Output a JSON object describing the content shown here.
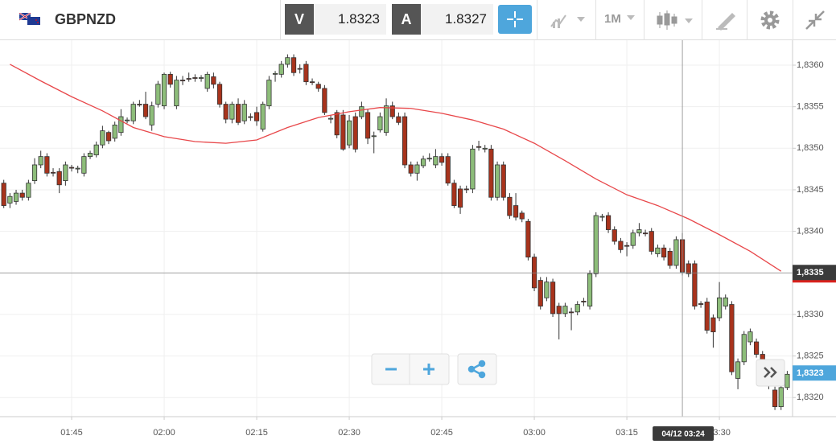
{
  "toolbar": {
    "symbol": "GBPNZD",
    "bid_label": "V",
    "bid": "1.8323",
    "ask_label": "A",
    "ask": "1.8327",
    "timeframe": "1M"
  },
  "chart_data": {
    "type": "candlestick",
    "up_color": "#8dbd7a",
    "down_color": "#a8331c",
    "grid": true,
    "ylim": [
      1.83177,
      1.8363
    ],
    "yticks": [
      {
        "value": 1.832,
        "label": "1,8320"
      },
      {
        "value": 1.8325,
        "label": "1,8325"
      },
      {
        "value": 1.833,
        "label": "1,8330"
      },
      {
        "value": 1.8335,
        "label": "1,8335"
      },
      {
        "value": 1.834,
        "label": "1,8340"
      },
      {
        "value": 1.8345,
        "label": "1,8345"
      },
      {
        "value": 1.835,
        "label": "1,8350"
      },
      {
        "value": 1.8355,
        "label": "1,8355"
      },
      {
        "value": 1.836,
        "label": "1,8360"
      }
    ],
    "xticks": [
      "01:45",
      "02:00",
      "02:15",
      "02:30",
      "02:45",
      "03:00",
      "03:15",
      "03:30"
    ],
    "x": [
      "01:34",
      "01:35",
      "01:36",
      "01:37",
      "01:38",
      "01:39",
      "01:40",
      "01:41",
      "01:42",
      "01:43",
      "01:44",
      "01:45",
      "01:46",
      "01:47",
      "01:48",
      "01:49",
      "01:50",
      "01:51",
      "01:52",
      "01:53",
      "01:54",
      "01:55",
      "01:56",
      "01:57",
      "01:58",
      "01:59",
      "02:00",
      "02:01",
      "02:02",
      "02:03",
      "02:04",
      "02:05",
      "02:06",
      "02:07",
      "02:08",
      "02:09",
      "02:10",
      "02:11",
      "02:12",
      "02:13",
      "02:14",
      "02:15",
      "02:16",
      "02:17",
      "02:18",
      "02:19",
      "02:20",
      "02:21",
      "02:22",
      "02:23",
      "02:24",
      "02:25",
      "02:26",
      "02:27",
      "02:28",
      "02:29",
      "02:30",
      "02:31",
      "02:32",
      "02:33",
      "02:34",
      "02:35",
      "02:36",
      "02:37",
      "02:38",
      "02:39",
      "02:40",
      "02:41",
      "02:42",
      "02:43",
      "02:44",
      "02:45",
      "02:46",
      "02:47",
      "02:48",
      "02:49",
      "02:50",
      "02:51",
      "02:52",
      "02:53",
      "02:54",
      "02:55",
      "02:56",
      "02:57",
      "02:58",
      "02:59",
      "03:00",
      "03:01",
      "03:02",
      "03:03",
      "03:04",
      "03:05",
      "03:06",
      "03:07",
      "03:08",
      "03:09",
      "03:10",
      "03:11",
      "03:12",
      "03:13",
      "03:14",
      "03:15",
      "03:16",
      "03:17",
      "03:18",
      "03:19",
      "03:20",
      "03:21",
      "03:22",
      "03:23",
      "03:24",
      "03:25",
      "03:26",
      "03:27",
      "03:28",
      "03:29",
      "03:30",
      "03:31",
      "03:32",
      "03:33",
      "03:34",
      "03:35",
      "03:36",
      "03:37",
      "03:38",
      "03:39",
      "03:40",
      "03:41"
    ],
    "candles": [
      [
        1.83458,
        1.83462,
        1.83428,
        1.83431
      ],
      [
        1.83434,
        1.83446,
        1.83428,
        1.83442
      ],
      [
        1.83436,
        1.8345,
        1.83432,
        1.83446
      ],
      [
        1.83446,
        1.8345,
        1.83437,
        1.83441
      ],
      [
        1.83441,
        1.83462,
        1.83437,
        1.83458
      ],
      [
        1.83461,
        1.83488,
        1.83457,
        1.8348
      ],
      [
        1.8348,
        1.83497,
        1.83476,
        1.8349
      ],
      [
        1.8349,
        1.83494,
        1.83466,
        1.8347
      ],
      [
        1.83471,
        1.83476,
        1.83466,
        1.8347
      ],
      [
        1.83472,
        1.83476,
        1.83446,
        1.83456
      ],
      [
        1.83461,
        1.83484,
        1.83455,
        1.8348
      ],
      [
        1.83477,
        1.8348,
        1.83472,
        1.83476
      ],
      [
        1.83475,
        1.83479,
        1.8347,
        1.83476
      ],
      [
        1.8347,
        1.83494,
        1.83466,
        1.8349
      ],
      [
        1.8349,
        1.83497,
        1.83487,
        1.83494
      ],
      [
        1.83492,
        1.83508,
        1.83489,
        1.83504
      ],
      [
        1.83504,
        1.83527,
        1.835,
        1.83521
      ],
      [
        1.83519,
        1.83521,
        1.83505,
        1.83509
      ],
      [
        1.83512,
        1.83532,
        1.83508,
        1.83528
      ],
      [
        1.83519,
        1.83547,
        1.83515,
        1.83538
      ],
      [
        1.83533,
        1.83537,
        1.8353,
        1.83534
      ],
      [
        1.83533,
        1.83556,
        1.83529,
        1.83553
      ],
      [
        1.83553,
        1.83558,
        1.8355,
        1.83552
      ],
      [
        1.83553,
        1.83568,
        1.83535,
        1.83538
      ],
      [
        1.83528,
        1.83556,
        1.83521,
        1.83551
      ],
      [
        1.83553,
        1.83581,
        1.83549,
        1.83577
      ],
      [
        1.83551,
        1.83591,
        1.83547,
        1.83589
      ],
      [
        1.83589,
        1.83592,
        1.83573,
        1.83577
      ],
      [
        1.83551,
        1.83587,
        1.83547,
        1.83582
      ],
      [
        1.83582,
        1.83587,
        1.83576,
        1.83581
      ],
      [
        1.83584,
        1.83591,
        1.8358,
        1.83583
      ],
      [
        1.83585,
        1.83589,
        1.8358,
        1.83584
      ],
      [
        1.83584,
        1.83588,
        1.8358,
        1.83585
      ],
      [
        1.83572,
        1.83592,
        1.83568,
        1.83589
      ],
      [
        1.83586,
        1.83591,
        1.83572,
        1.83577
      ],
      [
        1.83577,
        1.8358,
        1.83549,
        1.83553
      ],
      [
        1.83553,
        1.83556,
        1.8353,
        1.83535
      ],
      [
        1.83535,
        1.83556,
        1.8353,
        1.83553
      ],
      [
        1.83553,
        1.8356,
        1.83528,
        1.83531
      ],
      [
        1.83533,
        1.83558,
        1.83529,
        1.83553
      ],
      [
        1.83538,
        1.83542,
        1.83533,
        1.83537
      ],
      [
        1.83543,
        1.8355,
        1.83527,
        1.83533
      ],
      [
        1.83523,
        1.83556,
        1.8352,
        1.83553
      ],
      [
        1.83551,
        1.83587,
        1.83547,
        1.83582
      ],
      [
        1.83589,
        1.83593,
        1.8358,
        1.8359
      ],
      [
        1.83589,
        1.83605,
        1.83585,
        1.83601
      ],
      [
        1.83601,
        1.83613,
        1.83597,
        1.83609
      ],
      [
        1.83609,
        1.83613,
        1.83587,
        1.83591
      ],
      [
        1.83596,
        1.83601,
        1.8359,
        1.83595
      ],
      [
        1.83601,
        1.83605,
        1.83576,
        1.8358
      ],
      [
        1.8358,
        1.83584,
        1.83576,
        1.83579
      ],
      [
        1.83577,
        1.8358,
        1.83568,
        1.83572
      ],
      [
        1.83572,
        1.83576,
        1.8354,
        1.83543
      ],
      [
        1.83535,
        1.8354,
        1.8353,
        1.83536
      ],
      [
        1.83543,
        1.83546,
        1.83512,
        1.83516
      ],
      [
        1.8354,
        1.83546,
        1.83497,
        1.83499
      ],
      [
        1.83504,
        1.8354,
        1.835,
        1.83533
      ],
      [
        1.83538,
        1.83543,
        1.83495,
        1.83499
      ],
      [
        1.83538,
        1.83556,
        1.83535,
        1.8355
      ],
      [
        1.83543,
        1.83547,
        1.83505,
        1.83512
      ],
      [
        1.83514,
        1.8352,
        1.83494,
        1.83515
      ],
      [
        1.83522,
        1.83543,
        1.83519,
        1.83538
      ],
      [
        1.83519,
        1.8356,
        1.83515,
        1.83551
      ],
      [
        1.83551,
        1.83556,
        1.83535,
        1.83538
      ],
      [
        1.83538,
        1.83543,
        1.83528,
        1.83531
      ],
      [
        1.83538,
        1.83543,
        1.83476,
        1.8348
      ],
      [
        1.8348,
        1.83484,
        1.83466,
        1.8347
      ],
      [
        1.8347,
        1.83484,
        1.83461,
        1.8348
      ],
      [
        1.83479,
        1.83491,
        1.83476,
        1.83487
      ],
      [
        1.83487,
        1.83494,
        1.83484,
        1.83488
      ],
      [
        1.8348,
        1.83499,
        1.83476,
        1.8349
      ],
      [
        1.8349,
        1.83494,
        1.83479,
        1.83483
      ],
      [
        1.8349,
        1.83494,
        1.83455,
        1.83458
      ],
      [
        1.83458,
        1.83462,
        1.83428,
        1.83431
      ],
      [
        1.83451,
        1.83455,
        1.83421,
        1.83429
      ],
      [
        1.83451,
        1.83455,
        1.83446,
        1.8345
      ],
      [
        1.83451,
        1.83504,
        1.83446,
        1.83499
      ],
      [
        1.83502,
        1.83509,
        1.83497,
        1.83501
      ],
      [
        1.83499,
        1.83504,
        1.83495,
        1.835
      ],
      [
        1.83499,
        1.83504,
        1.83437,
        1.83441
      ],
      [
        1.83441,
        1.83484,
        1.83437,
        1.8348
      ],
      [
        1.8348,
        1.83484,
        1.83437,
        1.83441
      ],
      [
        1.83441,
        1.83446,
        1.83415,
        1.83419
      ],
      [
        1.83431,
        1.83446,
        1.83413,
        1.83417
      ],
      [
        1.83422,
        1.83425,
        1.83411,
        1.83415
      ],
      [
        1.83412,
        1.83415,
        1.83365,
        1.83369
      ],
      [
        1.83369,
        1.83373,
        1.83328,
        1.83332
      ],
      [
        1.83341,
        1.83345,
        1.83306,
        1.8331
      ],
      [
        1.8332,
        1.83345,
        1.83316,
        1.83339
      ],
      [
        1.83339,
        1.83343,
        1.83297,
        1.83301
      ],
      [
        1.8331,
        1.83314,
        1.8327,
        1.83301
      ],
      [
        1.83301,
        1.83314,
        1.83297,
        1.8331
      ],
      [
        1.83303,
        1.83308,
        1.83281,
        1.83302
      ],
      [
        1.83303,
        1.83316,
        1.83299,
        1.83312
      ],
      [
        1.83316,
        1.8332,
        1.8331,
        1.83315
      ],
      [
        1.8331,
        1.83353,
        1.83306,
        1.83349
      ],
      [
        1.83349,
        1.83423,
        1.83345,
        1.83419
      ],
      [
        1.83417,
        1.83421,
        1.83412,
        1.83418
      ],
      [
        1.83419,
        1.83423,
        1.83398,
        1.83402
      ],
      [
        1.83402,
        1.83406,
        1.83384,
        1.83388
      ],
      [
        1.83388,
        1.83392,
        1.83374,
        1.83378
      ],
      [
        1.83383,
        1.83387,
        1.8337,
        1.83382
      ],
      [
        1.83383,
        1.83402,
        1.83379,
        1.83398
      ],
      [
        1.83398,
        1.8341,
        1.83394,
        1.83402
      ],
      [
        1.83398,
        1.83402,
        1.83394,
        1.83397
      ],
      [
        1.834,
        1.83404,
        1.83372,
        1.83376
      ],
      [
        1.83373,
        1.83384,
        1.83369,
        1.8338
      ],
      [
        1.8338,
        1.83384,
        1.83365,
        1.83369
      ],
      [
        1.83376,
        1.8338,
        1.83355,
        1.83359
      ],
      [
        1.83359,
        1.83394,
        1.83355,
        1.8339
      ],
      [
        1.8339,
        1.83398,
        1.83347,
        1.83351
      ],
      [
        1.83361,
        1.83365,
        1.83345,
        1.83349
      ],
      [
        1.83361,
        1.83365,
        1.83306,
        1.8331
      ],
      [
        1.83313,
        1.83316,
        1.83308,
        1.83312
      ],
      [
        1.83315,
        1.8332,
        1.83277,
        1.83281
      ],
      [
        1.83296,
        1.833,
        1.8326,
        1.83279
      ],
      [
        1.83296,
        1.83339,
        1.83292,
        1.8332
      ],
      [
        1.8331,
        1.83324,
        1.83306,
        1.8332
      ],
      [
        1.83312,
        1.83316,
        1.83227,
        1.83231
      ],
      [
        1.83223,
        1.83247,
        1.8321,
        1.83243
      ],
      [
        1.83243,
        1.8328,
        1.83239,
        1.83276
      ],
      [
        1.83267,
        1.83283,
        1.83263,
        1.83279
      ],
      [
        1.83267,
        1.83271,
        1.83248,
        1.83252
      ],
      [
        1.83252,
        1.83256,
        1.83219,
        1.83223
      ],
      [
        1.83223,
        1.83227,
        1.8321,
        1.83214
      ],
      [
        1.83209,
        1.83213,
        1.83185,
        1.83189
      ],
      [
        1.83189,
        1.83216,
        1.83185,
        1.83212
      ],
      [
        1.83212,
        1.83232,
        1.83209,
        1.83228
      ]
    ],
    "ma": {
      "color": "#e8474a",
      "x": [
        "01:35",
        "01:40",
        "01:45",
        "01:50",
        "01:55",
        "02:00",
        "02:05",
        "02:10",
        "02:15",
        "02:20",
        "02:25",
        "02:30",
        "02:35",
        "02:40",
        "02:45",
        "02:50",
        "02:55",
        "03:00",
        "03:05",
        "03:10",
        "03:15",
        "03:20",
        "03:25",
        "03:30",
        "03:35",
        "03:40"
      ],
      "values": [
        1.83601,
        1.83581,
        1.83562,
        1.83545,
        1.83525,
        1.83514,
        1.83508,
        1.83506,
        1.8351,
        1.83525,
        1.83537,
        1.83544,
        1.83549,
        1.83548,
        1.83542,
        1.83534,
        1.83523,
        1.83506,
        1.83485,
        1.83463,
        1.83444,
        1.83431,
        1.83415,
        1.83396,
        1.83376,
        1.83352
      ]
    },
    "crosshair": {
      "price": {
        "value": 1.8335,
        "label": "1,8335"
      },
      "time": "04/12 03:24"
    },
    "last_price": {
      "value": 1.8323,
      "label": "1,8323"
    }
  }
}
